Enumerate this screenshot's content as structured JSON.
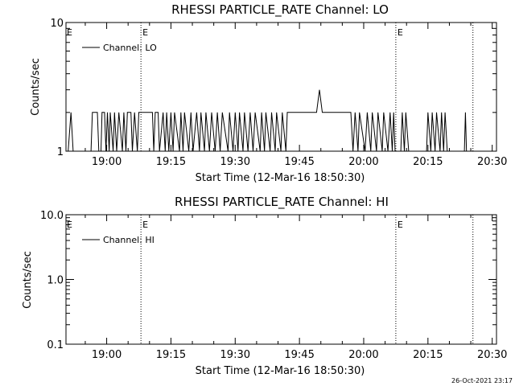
{
  "footer": {
    "timestamp": "26-Oct-2021 23:17"
  },
  "chart_data": [
    {
      "type": "line",
      "title": "RHESSI PARTICLE_RATE Channel: LO",
      "xlabel": "Start Time (12-Mar-16 18:50:30)",
      "ylabel": "Counts/sec",
      "x_ticks": [
        "19:00",
        "19:15",
        "19:30",
        "19:45",
        "20:00",
        "20:15",
        "20:30"
      ],
      "y_ticks": [
        "1",
        "10"
      ],
      "y_scale": "log",
      "ylim": [
        1,
        10
      ],
      "xlim": [
        "18:50:30",
        "20:31:00"
      ],
      "legend": {
        "label": "Channel: LO",
        "position": "top-left"
      },
      "event_markers": [
        {
          "time": "19:08:00",
          "label": "E"
        },
        {
          "time": "20:07:30",
          "label": "E"
        },
        {
          "time": "20:25:30",
          "label": ""
        }
      ],
      "series": [
        {
          "name": "Channel: LO",
          "points": [
            [
              "18:51:00",
              1
            ],
            [
              "18:51:40",
              2
            ],
            [
              "18:52:10",
              1
            ],
            [
              "18:56:20",
              1
            ],
            [
              "18:56:40",
              2
            ],
            [
              "18:57:50",
              2
            ],
            [
              "18:58:10",
              1
            ],
            [
              "18:58:40",
              1
            ],
            [
              "18:58:55",
              2
            ],
            [
              "18:59:30",
              2
            ],
            [
              "18:59:50",
              1
            ],
            [
              "19:00:10",
              2
            ],
            [
              "19:00:35",
              1
            ],
            [
              "19:00:50",
              2
            ],
            [
              "19:01:30",
              1
            ],
            [
              "19:01:50",
              2
            ],
            [
              "19:02:20",
              1
            ],
            [
              "19:02:50",
              2
            ],
            [
              "19:03:40",
              1
            ],
            [
              "19:04:00",
              2
            ],
            [
              "19:04:30",
              1
            ],
            [
              "19:04:50",
              2
            ],
            [
              "19:05:40",
              2
            ],
            [
              "19:06:00",
              1
            ],
            [
              "19:06:30",
              2
            ],
            [
              "19:07:10",
              1
            ],
            [
              "19:07:30",
              2
            ],
            [
              "19:09:00",
              2
            ],
            [
              "19:09:40",
              2
            ],
            [
              "19:10:40",
              2
            ],
            [
              "19:11:00",
              1
            ],
            [
              "19:11:20",
              2
            ],
            [
              "19:12:00",
              2
            ],
            [
              "19:12:20",
              1
            ],
            [
              "19:13:10",
              2
            ],
            [
              "19:13:40",
              1
            ],
            [
              "19:14:00",
              2
            ],
            [
              "19:14:30",
              1
            ],
            [
              "19:15:00",
              2
            ],
            [
              "19:15:30",
              1
            ],
            [
              "19:15:50",
              2
            ],
            [
              "19:17:00",
              1
            ],
            [
              "19:17:20",
              2
            ],
            [
              "19:17:50",
              1
            ],
            [
              "19:18:10",
              2
            ],
            [
              "19:19:10",
              1
            ],
            [
              "19:19:40",
              2
            ],
            [
              "19:20:10",
              1
            ],
            [
              "19:21:00",
              2
            ],
            [
              "19:21:40",
              1
            ],
            [
              "19:22:00",
              2
            ],
            [
              "19:22:50",
              1
            ],
            [
              "19:23:10",
              2
            ],
            [
              "19:24:00",
              1
            ],
            [
              "19:24:30",
              2
            ],
            [
              "19:25:20",
              1
            ],
            [
              "19:25:50",
              2
            ],
            [
              "19:26:30",
              1
            ],
            [
              "19:27:00",
              2
            ],
            [
              "19:28:20",
              1
            ],
            [
              "19:28:40",
              2
            ],
            [
              "19:29:30",
              1
            ],
            [
              "19:30:00",
              2
            ],
            [
              "19:30:40",
              1
            ],
            [
              "19:31:00",
              2
            ],
            [
              "19:31:50",
              1
            ],
            [
              "19:32:10",
              2
            ],
            [
              "19:33:00",
              1
            ],
            [
              "19:33:30",
              2
            ],
            [
              "19:34:10",
              1
            ],
            [
              "19:34:40",
              2
            ],
            [
              "19:35:50",
              1
            ],
            [
              "19:36:10",
              2
            ],
            [
              "19:36:50",
              1
            ],
            [
              "19:37:10",
              2
            ],
            [
              "19:38:10",
              1
            ],
            [
              "19:38:30",
              2
            ],
            [
              "19:39:20",
              1
            ],
            [
              "19:39:40",
              2
            ],
            [
              "19:40:40",
              1
            ],
            [
              "19:41:00",
              2
            ],
            [
              "19:41:50",
              1
            ],
            [
              "19:42:10",
              2
            ],
            [
              "19:49:00",
              2
            ],
            [
              "19:49:40",
              3
            ],
            [
              "19:50:20",
              2
            ],
            [
              "19:51:00",
              2
            ],
            [
              "19:57:00",
              2
            ],
            [
              "19:57:30",
              1
            ],
            [
              "19:58:00",
              2
            ],
            [
              "19:58:40",
              1
            ],
            [
              "19:59:00",
              2
            ],
            [
              "20:00:20",
              1
            ],
            [
              "20:00:50",
              2
            ],
            [
              "20:01:40",
              1
            ],
            [
              "20:02:00",
              2
            ],
            [
              "20:03:00",
              1
            ],
            [
              "20:03:20",
              2
            ],
            [
              "20:04:20",
              1
            ],
            [
              "20:04:40",
              2
            ],
            [
              "20:05:40",
              1
            ],
            [
              "20:06:10",
              2
            ],
            [
              "20:06:40",
              1
            ],
            [
              "20:07:00",
              2
            ],
            [
              "20:07:20",
              1
            ],
            [
              "20:08:40",
              1
            ],
            [
              "20:09:00",
              2
            ],
            [
              "20:09:30",
              1
            ],
            [
              "20:09:50",
              2
            ],
            [
              "20:10:30",
              1
            ],
            [
              "20:14:40",
              1
            ],
            [
              "20:15:00",
              2
            ],
            [
              "20:15:40",
              1
            ],
            [
              "20:16:00",
              2
            ],
            [
              "20:16:40",
              1
            ],
            [
              "20:17:00",
              2
            ],
            [
              "20:17:50",
              1
            ],
            [
              "20:18:10",
              2
            ],
            [
              "20:18:40",
              1
            ],
            [
              "20:19:00",
              2
            ],
            [
              "20:19:30",
              1
            ],
            [
              "20:23:30",
              1
            ],
            [
              "20:23:45",
              2
            ],
            [
              "20:24:00",
              1
            ]
          ]
        }
      ]
    },
    {
      "type": "line",
      "title": "RHESSI PARTICLE_RATE Channel: HI",
      "xlabel": "Start Time (12-Mar-16 18:50:30)",
      "ylabel": "Counts/sec",
      "x_ticks": [
        "19:00",
        "19:15",
        "19:30",
        "19:45",
        "20:00",
        "20:15",
        "20:30"
      ],
      "y_ticks": [
        "0.1",
        "1.0",
        "10.0"
      ],
      "y_scale": "log",
      "ylim": [
        0.1,
        10
      ],
      "xlim": [
        "18:50:30",
        "20:31:00"
      ],
      "legend": {
        "label": "Channel: HI",
        "position": "top-left"
      },
      "event_markers": [
        {
          "time": "19:08:00",
          "label": "E"
        },
        {
          "time": "20:07:30",
          "label": "E"
        },
        {
          "time": "20:25:30",
          "label": ""
        }
      ],
      "series": [
        {
          "name": "Channel: HI",
          "points": []
        }
      ]
    }
  ]
}
